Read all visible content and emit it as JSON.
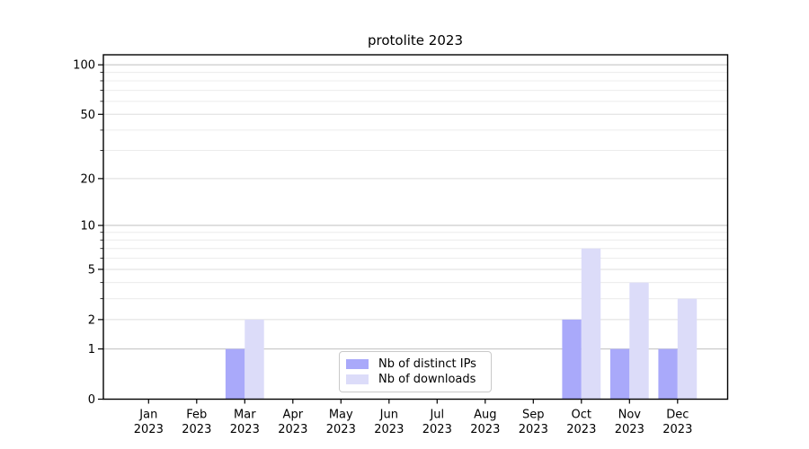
{
  "figure": {
    "background": "#ffffff"
  },
  "chart_data": {
    "type": "bar",
    "title": "protolite 2023",
    "categories": [
      "Jan 2023",
      "Feb 2023",
      "Mar 2023",
      "Apr 2023",
      "May 2023",
      "Jun 2023",
      "Jul 2023",
      "Aug 2023",
      "Sep 2023",
      "Oct 2023",
      "Nov 2023",
      "Dec 2023"
    ],
    "series": [
      {
        "name": "Nb of distinct IPs",
        "color": "#a9a9fa",
        "values": [
          0,
          0,
          1,
          0,
          0,
          0,
          0,
          0,
          0,
          2,
          1,
          1
        ]
      },
      {
        "name": "Nb of downloads",
        "color": "#dcdcf9",
        "values": [
          0,
          0,
          2,
          0,
          0,
          0,
          0,
          0,
          0,
          7,
          4,
          3
        ]
      }
    ],
    "yscale": "log1p",
    "ylim": [
      0,
      115
    ],
    "yticks": [
      0,
      1,
      2,
      5,
      10,
      20,
      50,
      100
    ],
    "ytick_labels": [
      "0",
      "1",
      "2",
      "5",
      "10",
      "20",
      "50",
      "100"
    ],
    "yticks_decade": [
      1,
      10,
      100
    ],
    "yticks_minor": [
      3,
      4,
      6,
      7,
      8,
      9,
      30,
      40,
      60,
      70,
      80,
      90
    ],
    "grid": true,
    "legend_position": "lower center",
    "xlabel": "",
    "ylabel": ""
  },
  "colors": {
    "bar_distinct_ips": "#a9a9fa",
    "bar_downloads": "#dcdcf9",
    "grid_decade": "#bfbfbf",
    "grid_labeled": "#dedede",
    "grid_minor": "#ececec",
    "axis": "#000000",
    "text": "#000000",
    "legend_border": "#c9c9c9"
  }
}
